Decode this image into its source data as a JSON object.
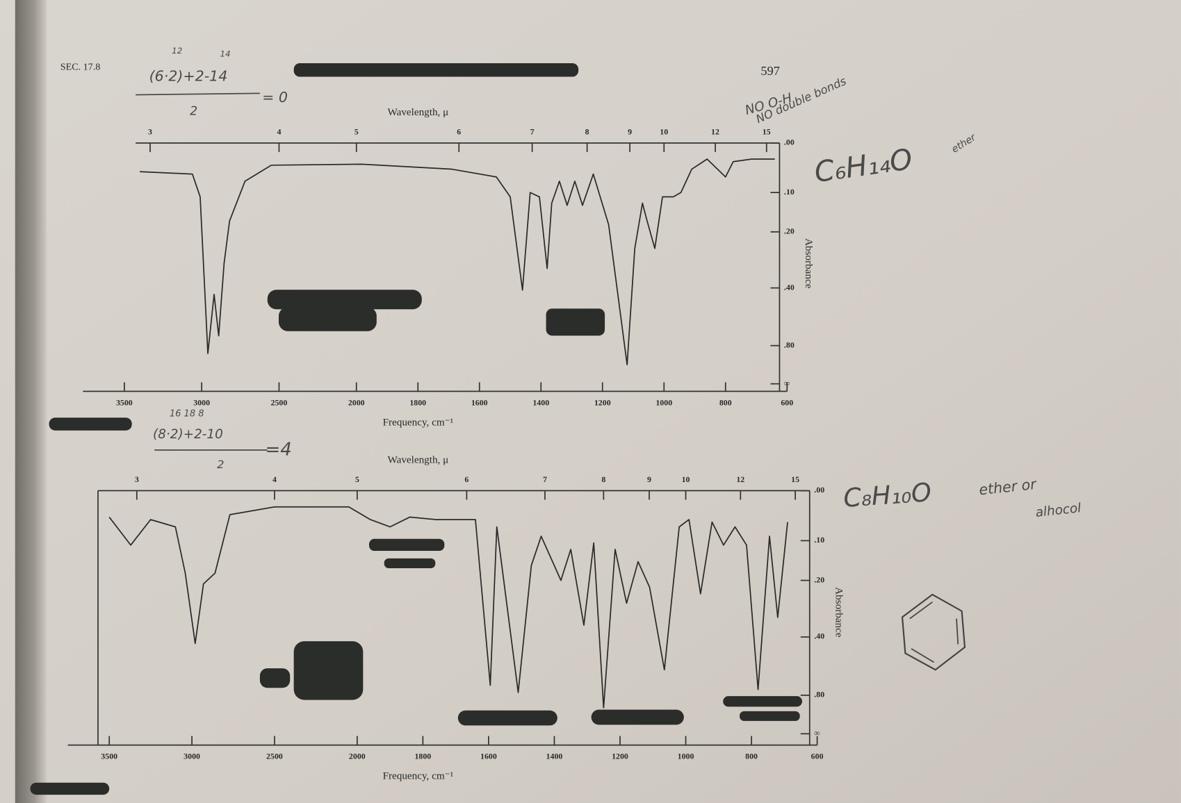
{
  "page": {
    "section": "SEC. 17.8",
    "page_number": "597"
  },
  "notes": {
    "top_formula": "(6·2)+2-14",
    "top_over_6": "12",
    "top_over_14": "14",
    "top_denominator": "2",
    "top_result": "= 0",
    "no_oh": "NO O-H",
    "no_double": "NO double bonds",
    "top_formula_name": "C₆H₁₄O",
    "top_class": "ether",
    "bottom_over": "16   18   8",
    "bottom_formula": "(8·2)+2-10",
    "bottom_denominator": "2",
    "bottom_result": "=4",
    "bottom_formula_name": "C₈H₁₀O",
    "bottom_class_1": "ether or",
    "bottom_class_2": "alhocol"
  },
  "chart_data": [
    {
      "type": "line",
      "x_label": "Frequency, cm⁻¹",
      "x2_label": "Wavelength, μ",
      "y_label": "Absorbance",
      "color": "#2a2a2a",
      "yscale": "transmittance",
      "x2scale": "reciprocal",
      "xlim": [
        3500,
        600
      ],
      "ylim": [
        0,
        null
      ],
      "xticks": [
        3500,
        3000,
        2500,
        2000,
        1800,
        1600,
        1400,
        1200,
        1000,
        800,
        600
      ],
      "x2ticks": [
        3,
        4,
        5,
        6,
        7,
        8,
        9,
        10,
        12,
        15
      ],
      "yticks": [
        {
          "value": 0,
          "label": ".00"
        },
        {
          "value": 0.1,
          "label": ".10"
        },
        {
          "value": 0.2,
          "label": ".20"
        },
        {
          "value": 0.4,
          "label": ".40"
        },
        {
          "value": 0.8,
          "label": ".80"
        },
        {
          "value": null,
          "label": "∞"
        }
      ],
      "x": [
        3400,
        3060,
        3010,
        2960,
        2920,
        2890,
        2855,
        2820,
        2720,
        2550,
        1983,
        1690,
        1545,
        1500,
        1460,
        1435,
        1405,
        1380,
        1365,
        1340,
        1315,
        1290,
        1265,
        1230,
        1180,
        1120,
        1095,
        1070,
        1055,
        1030,
        1005,
        970,
        945,
        910,
        860,
        800,
        775,
        715,
        640
      ],
      "values": [
        0.055,
        0.06,
        0.11,
        0.9,
        0.43,
        0.7,
        0.3,
        0.17,
        0.075,
        0.042,
        0.04,
        0.05,
        0.066,
        0.11,
        0.41,
        0.1,
        0.11,
        0.32,
        0.125,
        0.075,
        0.13,
        0.075,
        0.13,
        0.06,
        0.18,
        1.1,
        0.25,
        0.125,
        0.17,
        0.25,
        0.11,
        0.11,
        0.1,
        0.05,
        0.03,
        0.066,
        0.035,
        0.03,
        0.03
      ]
    },
    {
      "type": "line",
      "x_label": "Frequency, cm⁻¹",
      "x2_label": "Wavelength, μ",
      "y_label": "Absorbance",
      "color": "#2a2a2a",
      "yscale": "transmittance",
      "x2scale": "reciprocal",
      "xlim": [
        3500,
        600
      ],
      "ylim": [
        0,
        null
      ],
      "xticks": [
        3500,
        3000,
        2500,
        2000,
        1800,
        1600,
        1400,
        1200,
        1000,
        800,
        600
      ],
      "x2ticks": [
        3,
        4,
        5,
        6,
        7,
        8,
        9,
        10,
        12,
        15
      ],
      "yticks": [
        {
          "value": 0,
          "label": ".00"
        },
        {
          "value": 0.1,
          "label": ".10"
        },
        {
          "value": 0.2,
          "label": ".20"
        },
        {
          "value": 0.4,
          "label": ".40"
        },
        {
          "value": 0.8,
          "label": ".80"
        },
        {
          "value": null,
          "label": "∞"
        }
      ],
      "x": [
        3500,
        3370,
        3250,
        3100,
        3040,
        2980,
        2930,
        2860,
        2770,
        2500,
        2050,
        1960,
        1900,
        1840,
        1760,
        1640,
        1595,
        1575,
        1510,
        1470,
        1440,
        1380,
        1350,
        1310,
        1280,
        1250,
        1215,
        1180,
        1145,
        1110,
        1065,
        1020,
        990,
        955,
        920,
        885,
        850,
        815,
        780,
        745,
        720,
        690
      ],
      "values": [
        0.05,
        0.11,
        0.055,
        0.07,
        0.18,
        0.43,
        0.21,
        0.18,
        0.045,
        0.03,
        0.03,
        0.055,
        0.07,
        0.05,
        0.055,
        0.055,
        0.7,
        0.07,
        0.77,
        0.16,
        0.09,
        0.2,
        0.12,
        0.35,
        0.105,
        0.97,
        0.12,
        0.27,
        0.15,
        0.22,
        0.58,
        0.07,
        0.055,
        0.24,
        0.06,
        0.11,
        0.07,
        0.11,
        0.74,
        0.09,
        0.32,
        0.06
      ]
    }
  ]
}
